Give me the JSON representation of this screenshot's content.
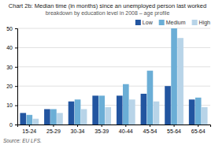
{
  "chart_data": {
    "type": "bar",
    "title": "Chart 2b: Median time (in months) since an unemployed person last worked",
    "subtitle": "breakdown by education level in 2008 – age profile",
    "annotations": [
      "Source: EU LFS."
    ],
    "categories": [
      "15-24",
      "25-29",
      "30-34",
      "35-39",
      "40-44",
      "45-54",
      "55-64",
      "65-64"
    ],
    "series": [
      {
        "name": "Low",
        "color": "#2255a0",
        "values": [
          6,
          8,
          12,
          15,
          15,
          16,
          20,
          13
        ]
      },
      {
        "name": "Medium",
        "color": "#6baed6",
        "values": [
          5,
          8,
          13,
          15,
          21,
          28,
          50,
          14
        ]
      },
      {
        "name": "High",
        "color": "#b8d4e8",
        "values": [
          3,
          6,
          8,
          9,
          13,
          12,
          45,
          9
        ]
      }
    ],
    "ylim": [
      0,
      50
    ],
    "yticks": [
      0,
      10,
      20,
      30,
      40,
      50
    ],
    "grid": true,
    "legend": "upper right"
  }
}
